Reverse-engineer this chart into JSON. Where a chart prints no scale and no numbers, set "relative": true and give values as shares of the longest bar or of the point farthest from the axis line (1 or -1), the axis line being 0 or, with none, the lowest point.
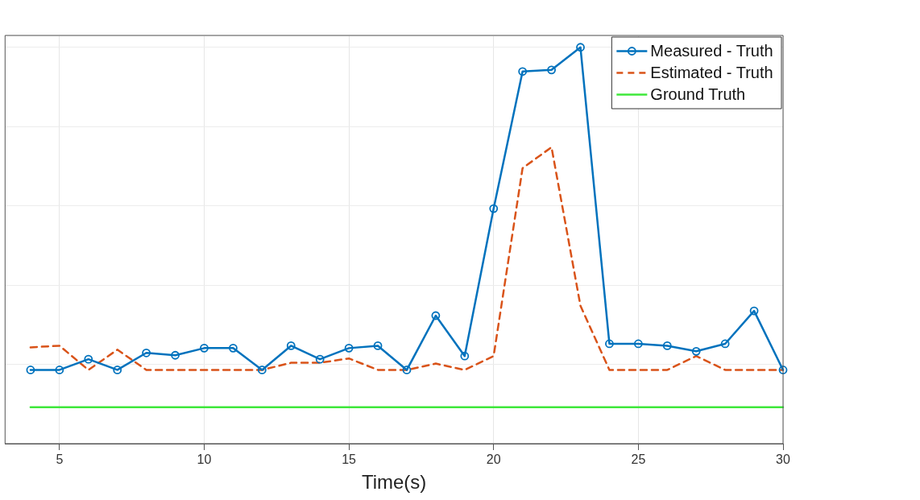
{
  "chart_data": {
    "type": "line",
    "xlabel": "Time(s)",
    "relative": true,
    "x": [
      4,
      5,
      6,
      7,
      8,
      9,
      10,
      11,
      12,
      13,
      14,
      15,
      16,
      17,
      18,
      19,
      20,
      21,
      22,
      23,
      24,
      25,
      26,
      27,
      28,
      29,
      30
    ],
    "xlim": [
      3.12,
      30
    ],
    "xticks": [
      5,
      10,
      15,
      20,
      25,
      30
    ],
    "grid": true,
    "legend": "top right",
    "series": [
      {
        "name": "Measured - Truth",
        "color": "#0072bd",
        "marker": "circle",
        "line_style": "solid",
        "values": [
          0.186,
          0.186,
          0.213,
          0.186,
          0.229,
          0.223,
          0.241,
          0.241,
          0.186,
          0.247,
          0.213,
          0.241,
          0.247,
          0.186,
          0.323,
          0.221,
          0.593,
          0.939,
          0.943,
          1,
          0.252,
          0.252,
          0.247,
          0.233,
          0.252,
          0.335,
          0.186
        ]
      },
      {
        "name": "Estimated - Truth",
        "color": "#d95319",
        "marker": "none",
        "line_style": "dashed",
        "values": [
          0.243,
          0.247,
          0.186,
          0.237,
          0.186,
          0.186,
          0.186,
          0.186,
          0.186,
          0.204,
          0.204,
          0.215,
          0.186,
          0.186,
          0.202,
          0.186,
          0.221,
          0.695,
          0.748,
          0.348,
          0.186,
          0.186,
          0.186,
          0.221,
          0.186,
          0.186,
          0.186
        ]
      },
      {
        "name": "Ground Truth",
        "color": "#3ee83a",
        "marker": "none",
        "line_style": "solid",
        "values": [
          0.092,
          0.092,
          0.092,
          0.092,
          0.092,
          0.092,
          0.092,
          0.092,
          0.092,
          0.092,
          0.092,
          0.092,
          0.092,
          0.092,
          0.092,
          0.092,
          0.092,
          0.092,
          0.092,
          0.092,
          0.092,
          0.092,
          0.092,
          0.092,
          0.092,
          0.092,
          0.092
        ]
      }
    ]
  }
}
